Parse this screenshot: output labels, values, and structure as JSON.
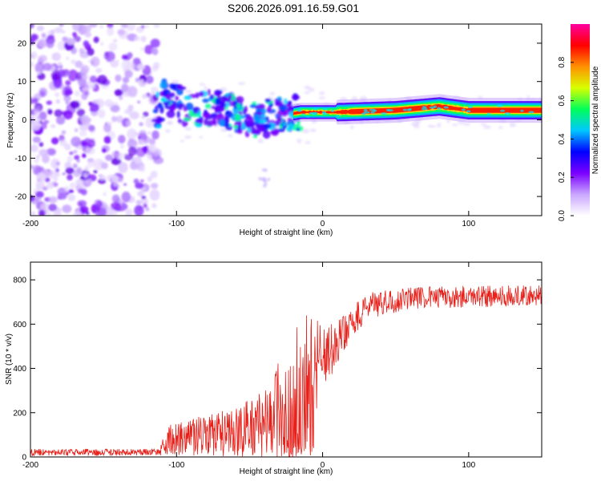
{
  "title": "S206.2026.091.16.59.G01",
  "chart_data": [
    {
      "type": "heatmap",
      "title": "S206.2026.091.16.59.G01",
      "xlabel": "Height of straight line (km)",
      "ylabel": "Frequency (Hz)",
      "xlim": [
        -200,
        150
      ],
      "ylim": [
        -25,
        25
      ],
      "xticks": [
        -200,
        -100,
        0,
        100
      ],
      "yticks": [
        20,
        10,
        0,
        -10,
        -20
      ],
      "colorbar": {
        "label": "Normalized spectral amplitude",
        "range": [
          0,
          1
        ],
        "ticks": [
          "0.0",
          "0.2",
          "0.4",
          "0.6",
          "0.8"
        ],
        "colors": [
          "#ffffff",
          "#c9a6ff",
          "#7a00ff",
          "#0000ff",
          "#00c8ff",
          "#00ff5a",
          "#d8ff00",
          "#ff9000",
          "#ff0000",
          "#ff00a0"
        ]
      },
      "ridge": [
        {
          "x": -110,
          "y": 6
        },
        {
          "x": -90,
          "y": 3
        },
        {
          "x": -70,
          "y": 3
        },
        {
          "x": -50,
          "y": 0
        },
        {
          "x": -30,
          "y": 1
        },
        {
          "x": -15,
          "y": 2
        },
        {
          "x": 10,
          "y": 2
        },
        {
          "x": 50,
          "y": 2.5
        },
        {
          "x": 80,
          "y": 3.5
        },
        {
          "x": 100,
          "y": 2.5
        },
        {
          "x": 150,
          "y": 2.5
        }
      ]
    },
    {
      "type": "line",
      "xlabel": "Height of straight line (km)",
      "ylabel": "SNR (10 * v/v)",
      "xlim": [
        -200,
        150
      ],
      "ylim": [
        0,
        880
      ],
      "xticks": [
        -200,
        -100,
        0,
        100
      ],
      "yticks": [
        0,
        200,
        400,
        600,
        800
      ],
      "color": "#e8201a",
      "profile": [
        {
          "x": -200,
          "base": 20,
          "noise": 15
        },
        {
          "x": -112,
          "base": 22,
          "noise": 15
        },
        {
          "x": -105,
          "base": 80,
          "noise": 70
        },
        {
          "x": -60,
          "base": 110,
          "noise": 110
        },
        {
          "x": -35,
          "base": 160,
          "noise": 170
        },
        {
          "x": -25,
          "base": 280,
          "noise": 300
        },
        {
          "x": -15,
          "base": 340,
          "noise": 360
        },
        {
          "x": 0,
          "base": 440,
          "noise": 150
        },
        {
          "x": 15,
          "base": 560,
          "noise": 80
        },
        {
          "x": 30,
          "base": 680,
          "noise": 60
        },
        {
          "x": 60,
          "base": 720,
          "noise": 50
        },
        {
          "x": 150,
          "base": 730,
          "noise": 45
        }
      ]
    }
  ]
}
